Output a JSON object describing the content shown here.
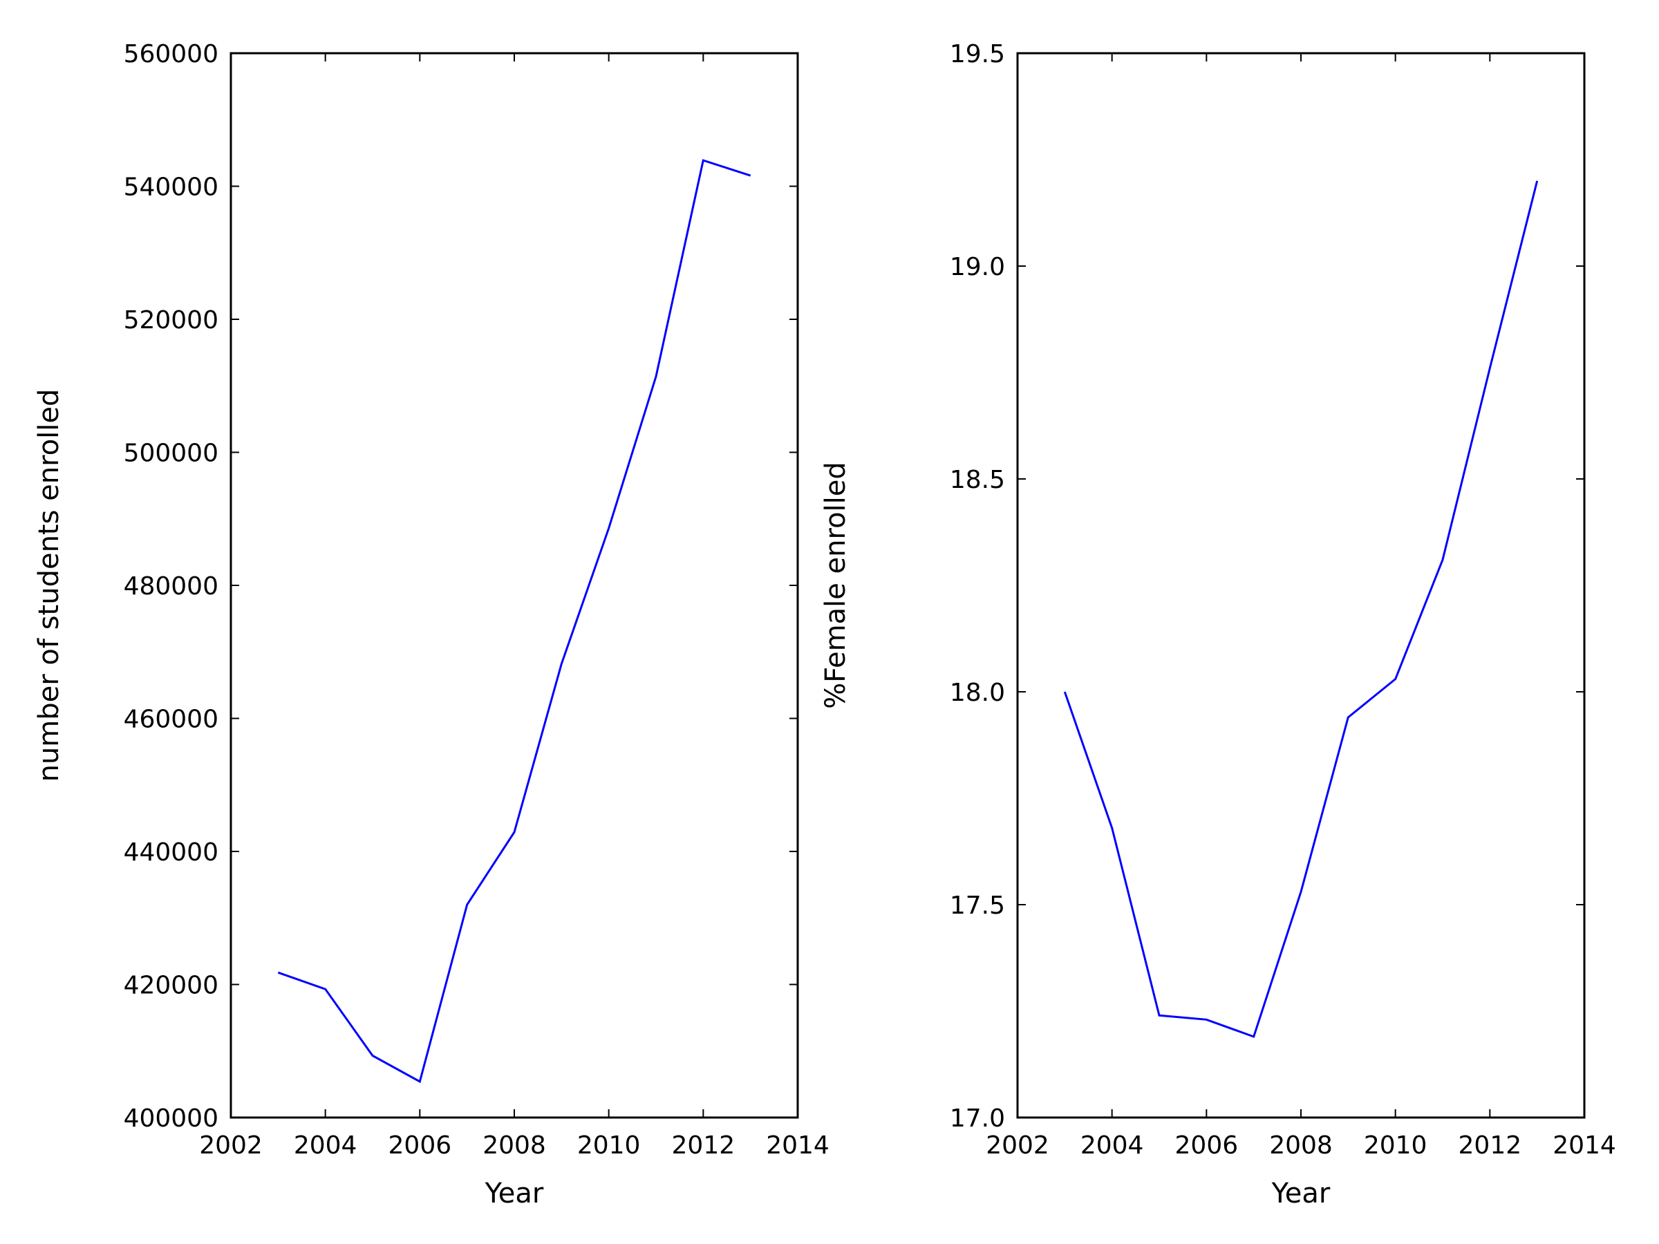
{
  "chart_data": [
    {
      "type": "line",
      "title": "",
      "xlabel": "Year",
      "ylabel": "number of students enrolled",
      "xlim": [
        2002,
        2014
      ],
      "ylim": [
        400000,
        560000
      ],
      "xticks": [
        "2002",
        "2004",
        "2006",
        "2008",
        "2010",
        "2012",
        "2014"
      ],
      "yticks": [
        "400000",
        "420000",
        "440000",
        "460000",
        "480000",
        "500000",
        "520000",
        "540000",
        "560000"
      ],
      "grid": false,
      "series": [
        {
          "color": "#0000ff",
          "x": [
            2003,
            2004,
            2005,
            2006,
            2007,
            2008,
            2009,
            2010,
            2011,
            2012,
            2013
          ],
          "y": [
            421800,
            419300,
            409300,
            405400,
            432000,
            442900,
            468200,
            488600,
            511400,
            543900,
            541600
          ]
        }
      ]
    },
    {
      "type": "line",
      "title": "",
      "xlabel": "Year",
      "ylabel": "%Female enrolled",
      "xlim": [
        2002,
        2014
      ],
      "ylim": [
        17.0,
        19.5
      ],
      "xticks": [
        "2002",
        "2004",
        "2006",
        "2008",
        "2010",
        "2012",
        "2014"
      ],
      "yticks": [
        "17.0",
        "17.5",
        "18.0",
        "18.5",
        "19.0",
        "19.5"
      ],
      "grid": false,
      "series": [
        {
          "color": "#0000ff",
          "x": [
            2003,
            2004,
            2005,
            2006,
            2007,
            2008,
            2009,
            2010,
            2011,
            2012,
            2013
          ],
          "y": [
            18.0,
            17.68,
            17.24,
            17.23,
            17.19,
            17.53,
            17.94,
            18.03,
            18.31,
            18.76,
            19.2
          ]
        }
      ]
    }
  ]
}
